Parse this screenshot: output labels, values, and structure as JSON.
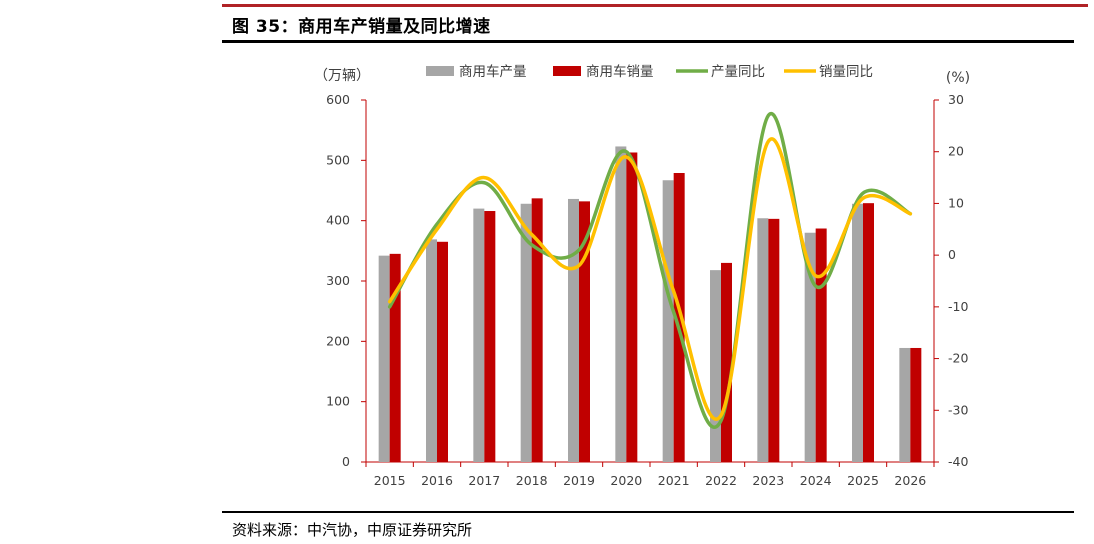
{
  "figure": {
    "title": "图 35：商用车产销量及同比增速",
    "source": "资料来源：中汽协，中原证券研究所"
  },
  "chart_data": {
    "type": "bar",
    "categories": [
      "2015",
      "2016",
      "2017",
      "2018",
      "2019",
      "2020",
      "2021",
      "2022",
      "2023",
      "2024",
      "2025",
      "2026"
    ],
    "left_axis_label": "（万辆）",
    "right_axis_label": "(%)",
    "ylim_left": [
      0,
      600
    ],
    "ylim_right": [
      -40,
      30
    ],
    "left_ticks": [
      0,
      100,
      200,
      300,
      400,
      500,
      600
    ],
    "right_ticks": [
      -40,
      -30,
      -20,
      -10,
      0,
      10,
      20,
      30
    ],
    "legend_position": "top",
    "grid": false,
    "series": [
      {
        "name": "商用车产量",
        "kind": "bar",
        "axis": "left",
        "color": "#a6a6a6",
        "values": [
          342,
          369,
          420,
          428,
          436,
          523,
          467,
          318,
          404,
          380,
          428,
          189
        ]
      },
      {
        "name": "商用车销量",
        "kind": "bar",
        "axis": "left",
        "color": "#c00000",
        "values": [
          345,
          365,
          416,
          437,
          432,
          513,
          479,
          330,
          403,
          387,
          429,
          189
        ]
      },
      {
        "name": "产量同比",
        "kind": "line",
        "axis": "right",
        "color": "#70ad47",
        "values": [
          -10,
          6,
          14,
          2,
          1,
          20,
          -11,
          -32,
          27,
          -6,
          12,
          8
        ]
      },
      {
        "name": "销量同比",
        "kind": "line",
        "axis": "right",
        "color": "#ffc000",
        "values": [
          -9,
          5,
          15,
          4,
          -2,
          19,
          -7,
          -31,
          22,
          -4,
          11,
          8
        ]
      }
    ]
  }
}
